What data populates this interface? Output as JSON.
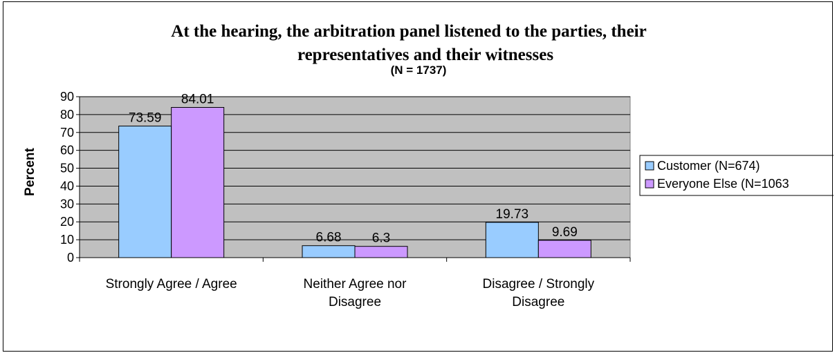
{
  "chart_data": {
    "type": "bar",
    "title_line1": "At the hearing, the arbitration panel listened to the parties, their",
    "title_line2": "representatives and their witnesses",
    "subtitle": "(N = 1737)",
    "ylabel": "Percent",
    "xlabel": "",
    "ylim": [
      0,
      90
    ],
    "ytick_step": 10,
    "grid": true,
    "legend_position": "right",
    "categories": [
      [
        "Strongly Agree / Agree"
      ],
      [
        "Neither Agree nor",
        "Disagree"
      ],
      [
        "Disagree / Strongly",
        "Disagree"
      ]
    ],
    "series": [
      {
        "name": "Customer (N=674)",
        "values": [
          73.59,
          6.68,
          19.73
        ],
        "labels": [
          "73.59",
          "6.68",
          "19.73"
        ],
        "color": "#99ccff"
      },
      {
        "name": "Everyone Else (N=1063",
        "values": [
          84.01,
          6.3,
          9.69
        ],
        "labels": [
          "84.01",
          "6.3",
          "9.69"
        ],
        "color": "#cc99ff"
      }
    ],
    "plot_background": "#c0c0c0"
  }
}
